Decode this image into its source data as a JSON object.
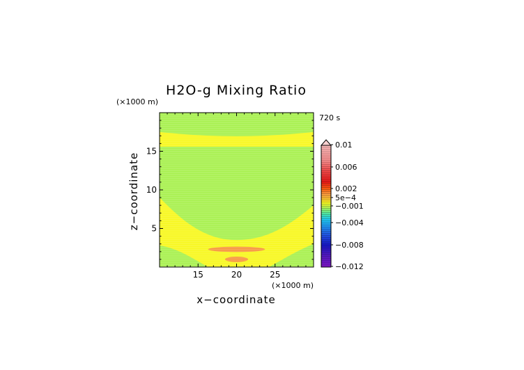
{
  "chart_data": {
    "type": "contour",
    "title": "H2O-g Mixing Ratio",
    "time_label": "720 s",
    "xlabel": "x−coordinate",
    "ylabel": "z−coordinate",
    "x_unit": "(×1000 m)",
    "y_unit": "(×1000 m)",
    "xlim": [
      10,
      30
    ],
    "ylim": [
      0,
      20
    ],
    "xticks": [
      15,
      20,
      25
    ],
    "yticks": [
      5,
      10,
      15
    ],
    "xtick_labels": [
      "15",
      "20",
      "25"
    ],
    "ytick_labels": [
      "5",
      "10",
      "15"
    ],
    "regions": [
      {
        "name": "top band",
        "level": "-0.001..5e-4",
        "z_range": [
          17.5,
          20
        ]
      },
      {
        "name": "upper yellow layer",
        "level": "5e-4..0.001",
        "z_range": [
          15.5,
          17.5
        ]
      },
      {
        "name": "main green bowl",
        "level": "-0.001..5e-4",
        "z_range": [
          3.5,
          15.5
        ]
      },
      {
        "name": "lower yellow layer",
        "level": "5e-4..0.001",
        "z_range": [
          0,
          9
        ]
      },
      {
        "name": "upper orange lens",
        "level": "0.001..0.002",
        "x_center": 20,
        "z_center": 2.3,
        "x_halfwidth": 3.7,
        "z_halfwidth": 0.35
      },
      {
        "name": "lower orange lens",
        "level": "0.001..0.002",
        "x_center": 20,
        "z_center": 1.0,
        "x_halfwidth": 1.5,
        "z_halfwidth": 0.35
      }
    ],
    "colorbar": {
      "labels": [
        "0.01",
        "0.006",
        "0.002",
        "5e−4",
        "−0.001",
        "−0.004",
        "−0.008",
        "−0.012"
      ],
      "label_values": [
        0.01,
        0.006,
        0.002,
        0.0005,
        -0.001,
        -0.004,
        -0.008,
        -0.012
      ],
      "extend": "max"
    },
    "colors": {
      "green": "#a8f050",
      "yellow": "#f8f820",
      "orange": "#f89840"
    }
  }
}
